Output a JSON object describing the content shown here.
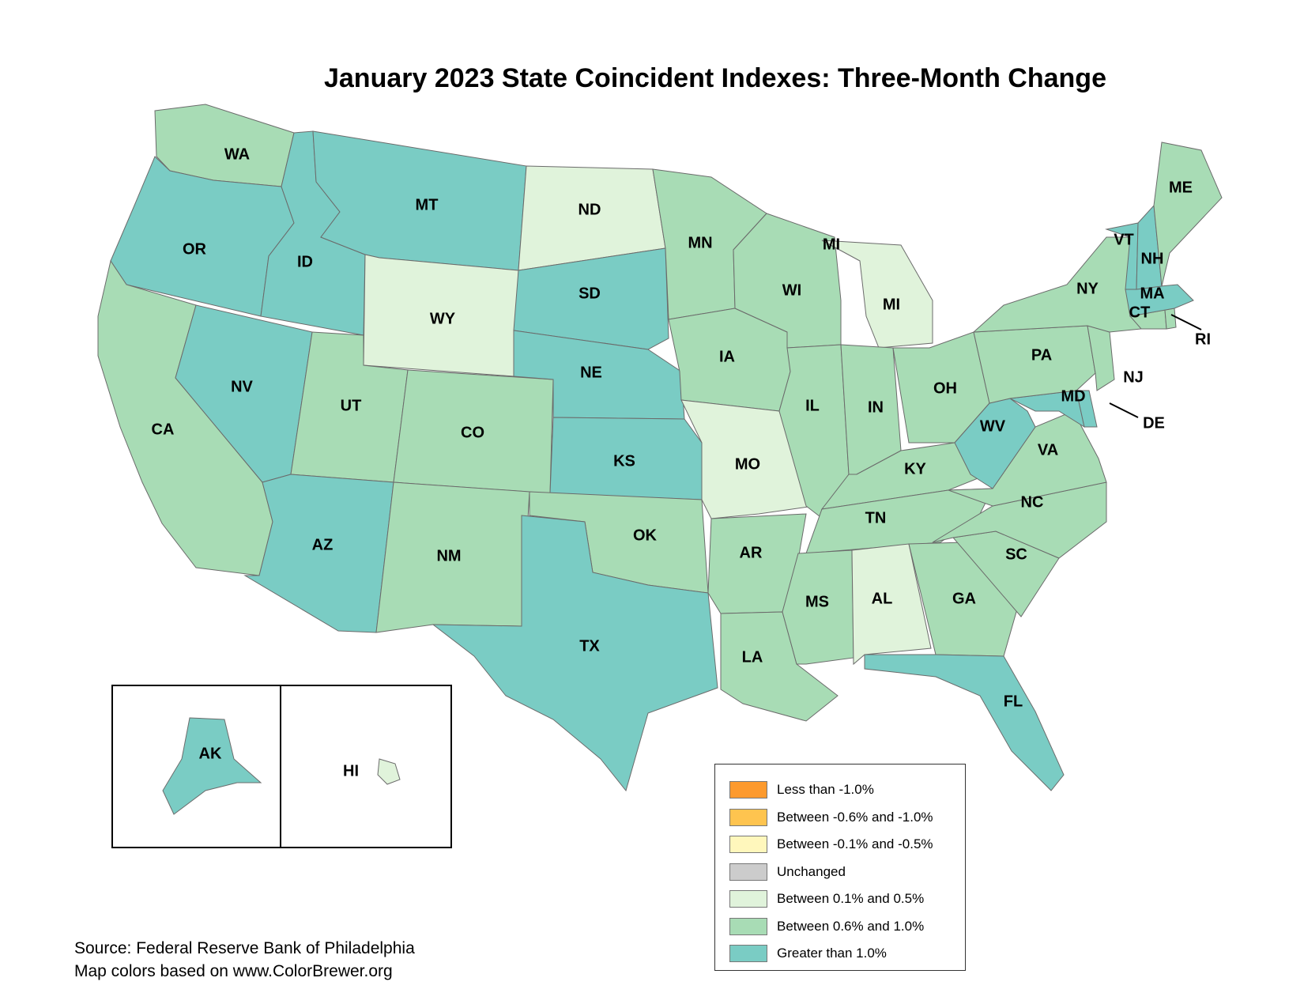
{
  "title": "January 2023 State Coincident Indexes: Three-Month Change",
  "colors": {
    "lt_neg1": "#fd9a2e",
    "neg06_neg1": "#fec44f",
    "neg01_neg05": "#fff7bc",
    "unchanged": "#cccccc",
    "p01_05": "#e0f3db",
    "p06_10": "#a8dcb5",
    "gt1": "#7accc4"
  },
  "legend": [
    {
      "label": "Less than -1.0%",
      "color": "#fd9a2e"
    },
    {
      "label": "Between -0.6% and -1.0%",
      "color": "#fec44f"
    },
    {
      "label": "Between -0.1% and -0.5%",
      "color": "#fff7bc"
    },
    {
      "label": "Unchanged",
      "color": "#cccccc"
    },
    {
      "label": "Between 0.1% and 0.5%",
      "color": "#e0f3db"
    },
    {
      "label": "Between 0.6% and 1.0%",
      "color": "#a8dcb5"
    },
    {
      "label": "Greater than 1.0%",
      "color": "#7accc4"
    }
  ],
  "states": {
    "WA": "Between 0.6% and 1.0%",
    "OR": "Greater than 1.0%",
    "CA": "Between 0.6% and 1.0%",
    "ID": "Greater than 1.0%",
    "NV": "Greater than 1.0%",
    "MT": "Greater than 1.0%",
    "WY": "Between 0.1% and 0.5%",
    "UT": "Between 0.6% and 1.0%",
    "AZ": "Greater than 1.0%",
    "CO": "Between 0.6% and 1.0%",
    "NM": "Between 0.6% and 1.0%",
    "ND": "Between 0.1% and 0.5%",
    "SD": "Greater than 1.0%",
    "NE": "Greater than 1.0%",
    "KS": "Greater than 1.0%",
    "OK": "Between 0.6% and 1.0%",
    "TX": "Greater than 1.0%",
    "MN": "Between 0.6% and 1.0%",
    "IA": "Between 0.6% and 1.0%",
    "MO": "Between 0.1% and 0.5%",
    "AR": "Between 0.6% and 1.0%",
    "LA": "Between 0.6% and 1.0%",
    "WI": "Between 0.6% and 1.0%",
    "IL": "Between 0.6% and 1.0%",
    "MI": "Between 0.1% and 0.5%",
    "IN": "Between 0.6% and 1.0%",
    "OH": "Between 0.6% and 1.0%",
    "KY": "Between 0.6% and 1.0%",
    "TN": "Between 0.6% and 1.0%",
    "MS": "Between 0.6% and 1.0%",
    "AL": "Between 0.1% and 0.5%",
    "GA": "Between 0.6% and 1.0%",
    "FL": "Greater than 1.0%",
    "SC": "Between 0.6% and 1.0%",
    "NC": "Between 0.6% and 1.0%",
    "VA": "Between 0.6% and 1.0%",
    "WV": "Greater than 1.0%",
    "MD": "Greater than 1.0%",
    "DE": "Greater than 1.0%",
    "PA": "Between 0.6% and 1.0%",
    "NJ": "Between 0.6% and 1.0%",
    "NY": "Between 0.6% and 1.0%",
    "CT": "Between 0.6% and 1.0%",
    "RI": "Between 0.6% and 1.0%",
    "MA": "Greater than 1.0%",
    "VT": "Greater than 1.0%",
    "NH": "Greater than 1.0%",
    "ME": "Between 0.6% and 1.0%",
    "AK": "Greater than 1.0%",
    "HI": "Between 0.1% and 0.5%"
  },
  "source": {
    "line1": "Source: Federal Reserve Bank of Philadelphia",
    "line2": "Map colors based on www.ColorBrewer.org"
  }
}
